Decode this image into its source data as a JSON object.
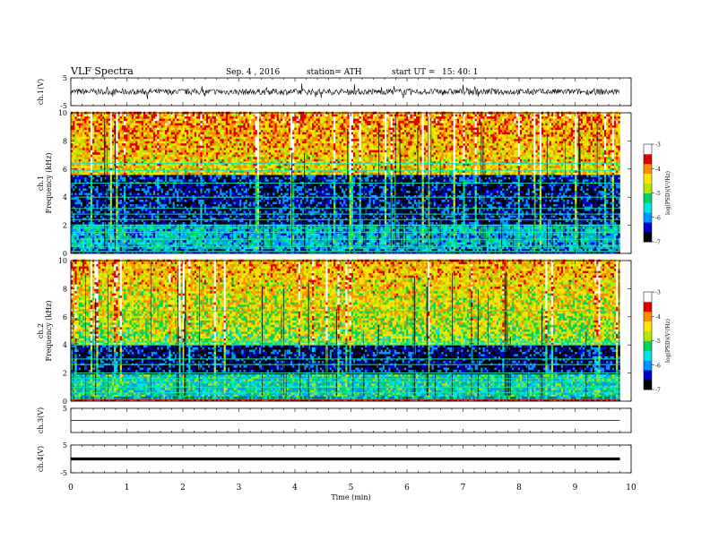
{
  "header": {
    "title": "VLF  Spectra",
    "date": "Sep. 4  , 2016",
    "station": "station= ATH",
    "start_label": "start  UT  =",
    "start_time": "15: 40: 1"
  },
  "chart_data": [
    {
      "type": "line",
      "panel": "ch1-waveform",
      "ylabel": "ch.1(V)",
      "ylim": [
        -5,
        5
      ],
      "y_ticks": [
        "5",
        "-5"
      ],
      "xlim": [
        0,
        10
      ],
      "data_end_min": 9.8,
      "signal": "noisy waveform around 0 V, amplitude about ±1.3 V with spikes to about ±2 V"
    },
    {
      "type": "heatmap",
      "panel": "ch1-spectrogram",
      "ylabel": "ch.1\nFrequency  (kHz)",
      "ylim": [
        0,
        10
      ],
      "y_ticks": [
        "0",
        "2",
        "4",
        "6",
        "8",
        "10"
      ],
      "xlim": [
        0,
        10
      ],
      "data_end_min": 9.8,
      "colorbar": {
        "label": "log(PSD)(V²/Hz)",
        "range": [
          -7,
          -3
        ],
        "ticks": [
          "-3",
          "-4",
          "-5",
          "-6",
          "-7"
        ],
        "colormap": [
          "#000000",
          "#0000c8",
          "#0096ff",
          "#00e6e6",
          "#00d25a",
          "#b4e600",
          "#ffe600",
          "#ff8c00",
          "#dc0000",
          "#ffffff"
        ]
      },
      "structure": {
        "low_band_khz": [
          0.3,
          2.0
        ],
        "low_band_level": -5.7,
        "quiet_band_khz": [
          2.0,
          5.5
        ],
        "quiet_band_level": -6.5,
        "high_band_khz": [
          5.5,
          10.0
        ],
        "high_band_level": -4.5,
        "line_frequencies_khz": [
          0.15,
          0.5,
          1.0,
          1.5,
          1.8,
          2.0,
          2.4,
          2.8,
          3.2,
          4.0,
          5.0,
          5.9,
          6.4
        ]
      }
    },
    {
      "type": "heatmap",
      "panel": "ch2-spectrogram",
      "ylabel": "ch.2\nFrequency  (kHz)",
      "ylim": [
        0,
        10
      ],
      "y_ticks": [
        "0",
        "2",
        "4",
        "6",
        "8",
        "10"
      ],
      "xlim": [
        0,
        10
      ],
      "data_end_min": 9.8,
      "colorbar": {
        "label": "log(PSD)(V²/Hz)",
        "range": [
          -7,
          -3
        ],
        "ticks": [
          "-3",
          "-4",
          "-5",
          "-6",
          "-7"
        ],
        "colormap": [
          "#000000",
          "#0000c8",
          "#0096ff",
          "#00e6e6",
          "#00d25a",
          "#b4e600",
          "#ffe600",
          "#ff8c00",
          "#dc0000",
          "#ffffff"
        ]
      },
      "structure": {
        "low_band_khz": [
          0.3,
          1.8
        ],
        "low_band_level": -5.5,
        "quiet_band_khz": [
          1.8,
          4.0
        ],
        "quiet_band_level": -6.6,
        "high_band_khz": [
          4.0,
          10.0
        ],
        "high_band_level": -4.9,
        "line_frequencies_khz": [
          0.2,
          0.6,
          1.0,
          1.4,
          1.6,
          2.0,
          2.6,
          3.0,
          4.0,
          4.2,
          6.4
        ]
      }
    },
    {
      "type": "line",
      "panel": "ch3-waveform",
      "ylabel": "ch.3(V)",
      "ylim": [
        -5,
        5
      ],
      "y_ticks": [
        "5"
      ],
      "xlim": [
        0,
        10
      ],
      "data_end_min": 9.8,
      "signal": "flat trace at about 0 V"
    },
    {
      "type": "line",
      "panel": "ch4-waveform",
      "ylabel": "ch.4(V)",
      "ylim": [
        -5,
        5
      ],
      "y_ticks": [
        "5",
        "-5"
      ],
      "xlim": [
        0,
        10
      ],
      "data_end_min": 9.8,
      "signal": "thick flat trace at about 0 V"
    }
  ],
  "x_axis": {
    "label": "Time  (min)",
    "ticks": [
      "0",
      "1",
      "2",
      "3",
      "4",
      "5",
      "6",
      "7",
      "8",
      "9",
      "10"
    ],
    "range": [
      0,
      10
    ]
  }
}
